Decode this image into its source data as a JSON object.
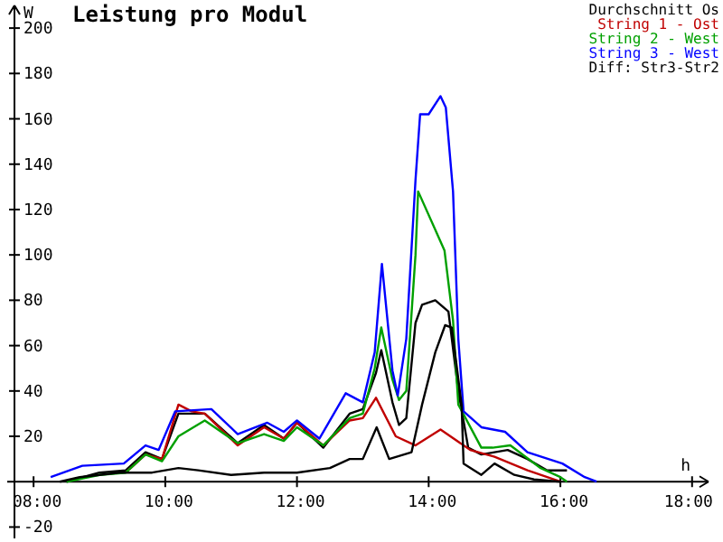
{
  "chart_data": {
    "type": "line",
    "title": "Leistung pro Modul",
    "xlabel": "h",
    "ylabel": "W",
    "xlim": [
      7.6,
      18.25
    ],
    "ylim": [
      -25,
      210
    ],
    "xticks": [
      {
        "value": 8,
        "label": "08:00"
      },
      {
        "value": 10,
        "label": "10:00"
      },
      {
        "value": 12,
        "label": "12:00"
      },
      {
        "value": 14,
        "label": "14:00"
      },
      {
        "value": 16,
        "label": "16:00"
      },
      {
        "value": 18,
        "label": "18:00"
      }
    ],
    "yticks": [
      -20,
      20,
      40,
      60,
      80,
      100,
      120,
      140,
      160,
      180,
      200
    ],
    "grid": false,
    "legend": "top right",
    "marker": "none",
    "line_style": "solid",
    "series": [
      {
        "name": "Durchschnitt Os",
        "color": "#000000",
        "x": [
          8.5,
          9.0,
          9.4,
          9.7,
          9.95,
          10.2,
          10.6,
          11.1,
          11.5,
          11.8,
          12.0,
          12.4,
          12.8,
          13.0,
          13.2,
          13.28,
          13.45,
          13.55,
          13.66,
          13.8,
          13.9,
          14.1,
          14.3,
          14.45,
          14.6,
          14.8,
          15.0,
          15.2,
          15.5,
          15.8,
          16.1
        ],
        "values": [
          0,
          4,
          5,
          13,
          10,
          30,
          30,
          17,
          25,
          19,
          26,
          15,
          30,
          32,
          48,
          58,
          35,
          25,
          28,
          70,
          78,
          80,
          75,
          40,
          15,
          12,
          13,
          14,
          10,
          5,
          5
        ]
      },
      {
        "name": "String 1 - Ost",
        "color": "#c00000",
        "x": [
          9.4,
          9.7,
          9.95,
          10.2,
          10.4,
          10.6,
          11.1,
          11.5,
          11.8,
          12.0,
          12.4,
          12.8,
          13.0,
          13.2,
          13.5,
          13.8,
          14.18,
          14.63,
          15.0,
          15.5,
          16.0
        ],
        "values": [
          4,
          12,
          10,
          34,
          31,
          30,
          16,
          24,
          19,
          26,
          16,
          27,
          28,
          37,
          20,
          16,
          23,
          14,
          11,
          5,
          0
        ]
      },
      {
        "name": "String 2 - West",
        "color": "#00a000",
        "x": [
          8.5,
          9.0,
          9.4,
          9.7,
          9.95,
          10.2,
          10.6,
          11.1,
          11.5,
          11.8,
          12.0,
          12.4,
          12.8,
          13.0,
          13.18,
          13.28,
          13.45,
          13.55,
          13.66,
          13.8,
          13.84,
          14.24,
          14.37,
          14.45,
          14.8,
          14.97,
          15.24,
          15.7,
          16.0,
          16.1
        ],
        "values": [
          0,
          3,
          4,
          12,
          9,
          20,
          27,
          17,
          21,
          18,
          24,
          16,
          28,
          30,
          50,
          68,
          45,
          36,
          40,
          100,
          128,
          102,
          71,
          34,
          15,
          15,
          16,
          6,
          2,
          0
        ]
      },
      {
        "name": "String 3 - West",
        "color": "#0000ff",
        "x": [
          8.26,
          8.74,
          9.37,
          9.7,
          9.9,
          10.15,
          10.7,
          11.1,
          11.55,
          11.8,
          12.0,
          12.34,
          12.74,
          13.0,
          13.18,
          13.29,
          13.45,
          13.53,
          13.66,
          13.8,
          13.87,
          14.0,
          14.18,
          14.26,
          14.37,
          14.45,
          14.53,
          14.8,
          15.16,
          15.5,
          16.03,
          16.37,
          16.55
        ],
        "values": [
          2,
          7,
          8,
          16,
          14,
          31,
          32,
          21,
          26,
          22,
          27,
          19,
          39,
          35,
          57,
          96,
          49,
          38,
          63,
          133,
          162,
          162,
          170,
          165,
          128,
          63,
          31,
          24,
          22,
          13,
          8,
          2,
          0
        ]
      },
      {
        "name": "Diff: Str3-Str2",
        "color": "#000000",
        "x": [
          8.4,
          8.7,
          9.3,
          9.8,
          10.2,
          10.5,
          11.0,
          11.5,
          12.0,
          12.5,
          12.8,
          13.0,
          13.21,
          13.4,
          13.74,
          13.9,
          14.1,
          14.25,
          14.35,
          14.5,
          14.53,
          14.8,
          15.0,
          15.3,
          15.6,
          16.0
        ],
        "values": [
          0,
          2,
          4,
          4,
          6,
          5,
          3,
          4,
          4,
          6,
          10,
          10,
          24,
          10,
          13,
          34,
          57,
          69,
          68,
          34,
          8,
          3,
          8,
          3,
          1,
          0
        ]
      }
    ]
  }
}
